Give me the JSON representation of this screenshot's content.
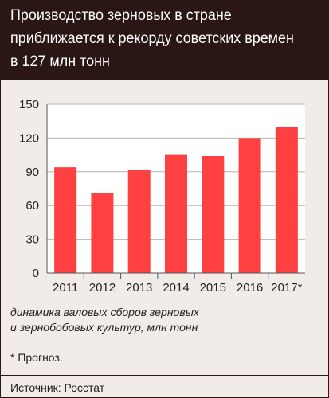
{
  "header": {
    "title": "Производство зерновых в стране\nприближается к рекорду советских времен\nв 127 млн тонн"
  },
  "caption": "динамика валовых сборов зерновых\nи зернобобовых культур, млн тонн",
  "footnote": "* Прогноз.",
  "source": "Источник: Росстат",
  "colors": {
    "bar": "#ff4040",
    "header_bg": "#2a1612",
    "panel_bg": "#f2ece8",
    "plot_bg": "#ffffff"
  },
  "chart_data": {
    "type": "bar",
    "categories": [
      "2011",
      "2012",
      "2013",
      "2014",
      "2015",
      "2016",
      "2017*"
    ],
    "values": [
      94,
      71,
      92,
      105,
      104,
      120,
      130
    ],
    "title": "Производство зерновых в стране приближается к рекорду советских времен в 127 млн тонн",
    "xlabel": "",
    "ylabel": "динамика валовых сборов зерновых и зернобобовых культур, млн тонн",
    "ylim": [
      0,
      150
    ],
    "yticks": [
      0,
      30,
      60,
      90,
      120,
      150
    ],
    "grid": true
  }
}
